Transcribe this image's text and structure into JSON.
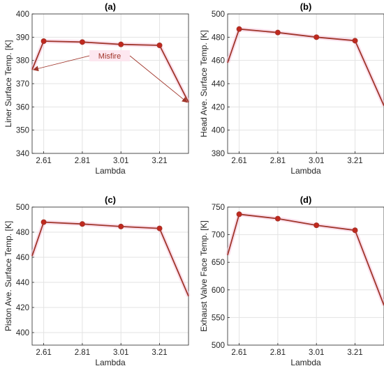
{
  "colors": {
    "line": "#a0352a",
    "marker": "#c0281e",
    "grid": "#e3e3e3",
    "axis": "#262626",
    "annotation_box": "#fde4ee"
  },
  "chart_data": [
    {
      "type": "line",
      "title": "(a)",
      "xlabel": "Lambda",
      "ylabel": "Liner Surface Temp. [K]",
      "xticks": [
        "2.61",
        "2.81",
        "3.01",
        "3.21"
      ],
      "yticks": [
        "340",
        "350",
        "360",
        "370",
        "380",
        "390",
        "400"
      ],
      "xlim": [
        2.55,
        3.36
      ],
      "ylim": [
        340,
        400
      ],
      "grid": true,
      "x": [
        2.55,
        2.61,
        2.81,
        3.01,
        3.21,
        3.36
      ],
      "y": [
        376,
        388.3,
        387.9,
        386.9,
        386.5,
        362
      ],
      "marker_x": [
        2.61,
        2.81,
        3.01,
        3.21
      ],
      "annotation": {
        "text": "Misfire",
        "points_to_x": [
          2.55,
          3.36
        ],
        "points_to_y": [
          376,
          362
        ]
      }
    },
    {
      "type": "line",
      "title": "(b)",
      "xlabel": "Lambda",
      "ylabel": "Head Ave. Surface Temp. [K]",
      "xticks": [
        "2.61",
        "2.81",
        "3.01",
        "3.21"
      ],
      "yticks": [
        "380",
        "400",
        "420",
        "440",
        "460",
        "480",
        "500"
      ],
      "xlim": [
        2.55,
        3.36
      ],
      "ylim": [
        380,
        500
      ],
      "grid": true,
      "x": [
        2.55,
        2.61,
        2.81,
        3.01,
        3.21,
        3.36
      ],
      "y": [
        458,
        487,
        484,
        480,
        477,
        421
      ],
      "marker_x": [
        2.61,
        2.81,
        3.01,
        3.21
      ]
    },
    {
      "type": "line",
      "title": "(c)",
      "xlabel": "Lambda",
      "ylabel": "Piston Ave. Surface Temp. [K]",
      "xticks": [
        "2.61",
        "2.81",
        "3.01",
        "3.21"
      ],
      "yticks": [
        "400",
        "420",
        "440",
        "460",
        "480",
        "500"
      ],
      "xlim": [
        2.55,
        3.36
      ],
      "ylim": [
        390,
        500
      ],
      "grid": true,
      "x": [
        2.55,
        2.61,
        2.81,
        3.01,
        3.21,
        3.36
      ],
      "y": [
        461,
        488,
        486.5,
        484.5,
        483,
        429
      ],
      "marker_x": [
        2.61,
        2.81,
        3.01,
        3.21
      ]
    },
    {
      "type": "line",
      "title": "(d)",
      "xlabel": "Lambda",
      "ylabel": "Exhaust Valve Face Temp. [K]",
      "xticks": [
        "2.61",
        "2.81",
        "3.01",
        "3.21"
      ],
      "yticks": [
        "500",
        "550",
        "600",
        "650",
        "700",
        "750"
      ],
      "xlim": [
        2.55,
        3.36
      ],
      "ylim": [
        500,
        750
      ],
      "grid": true,
      "x": [
        2.55,
        2.61,
        2.81,
        3.01,
        3.21,
        3.36
      ],
      "y": [
        663,
        737,
        729,
        717,
        708,
        572
      ],
      "marker_x": [
        2.61,
        2.81,
        3.01,
        3.21
      ]
    }
  ]
}
